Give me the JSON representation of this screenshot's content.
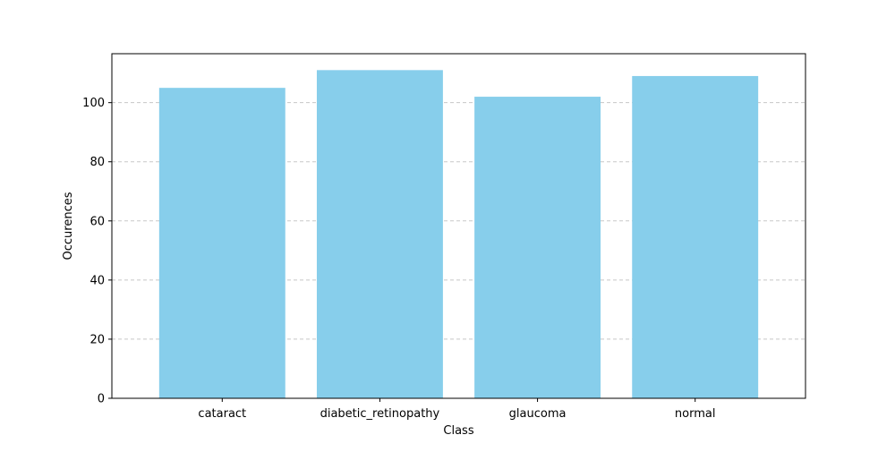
{
  "chart_data": {
    "type": "bar",
    "title": "",
    "xlabel": "Class",
    "ylabel": "Occurences",
    "categories": [
      "cataract",
      "diabetic_retinopathy",
      "glaucoma",
      "normal"
    ],
    "values": [
      105,
      111,
      102,
      109
    ],
    "ylim": [
      0,
      116.55
    ],
    "yticks": [
      0,
      20,
      40,
      60,
      80,
      100
    ],
    "grid": "y-dashed",
    "legend": "none",
    "bar_color": "#87ceeb",
    "grid_color": "#c8c8c8"
  }
}
